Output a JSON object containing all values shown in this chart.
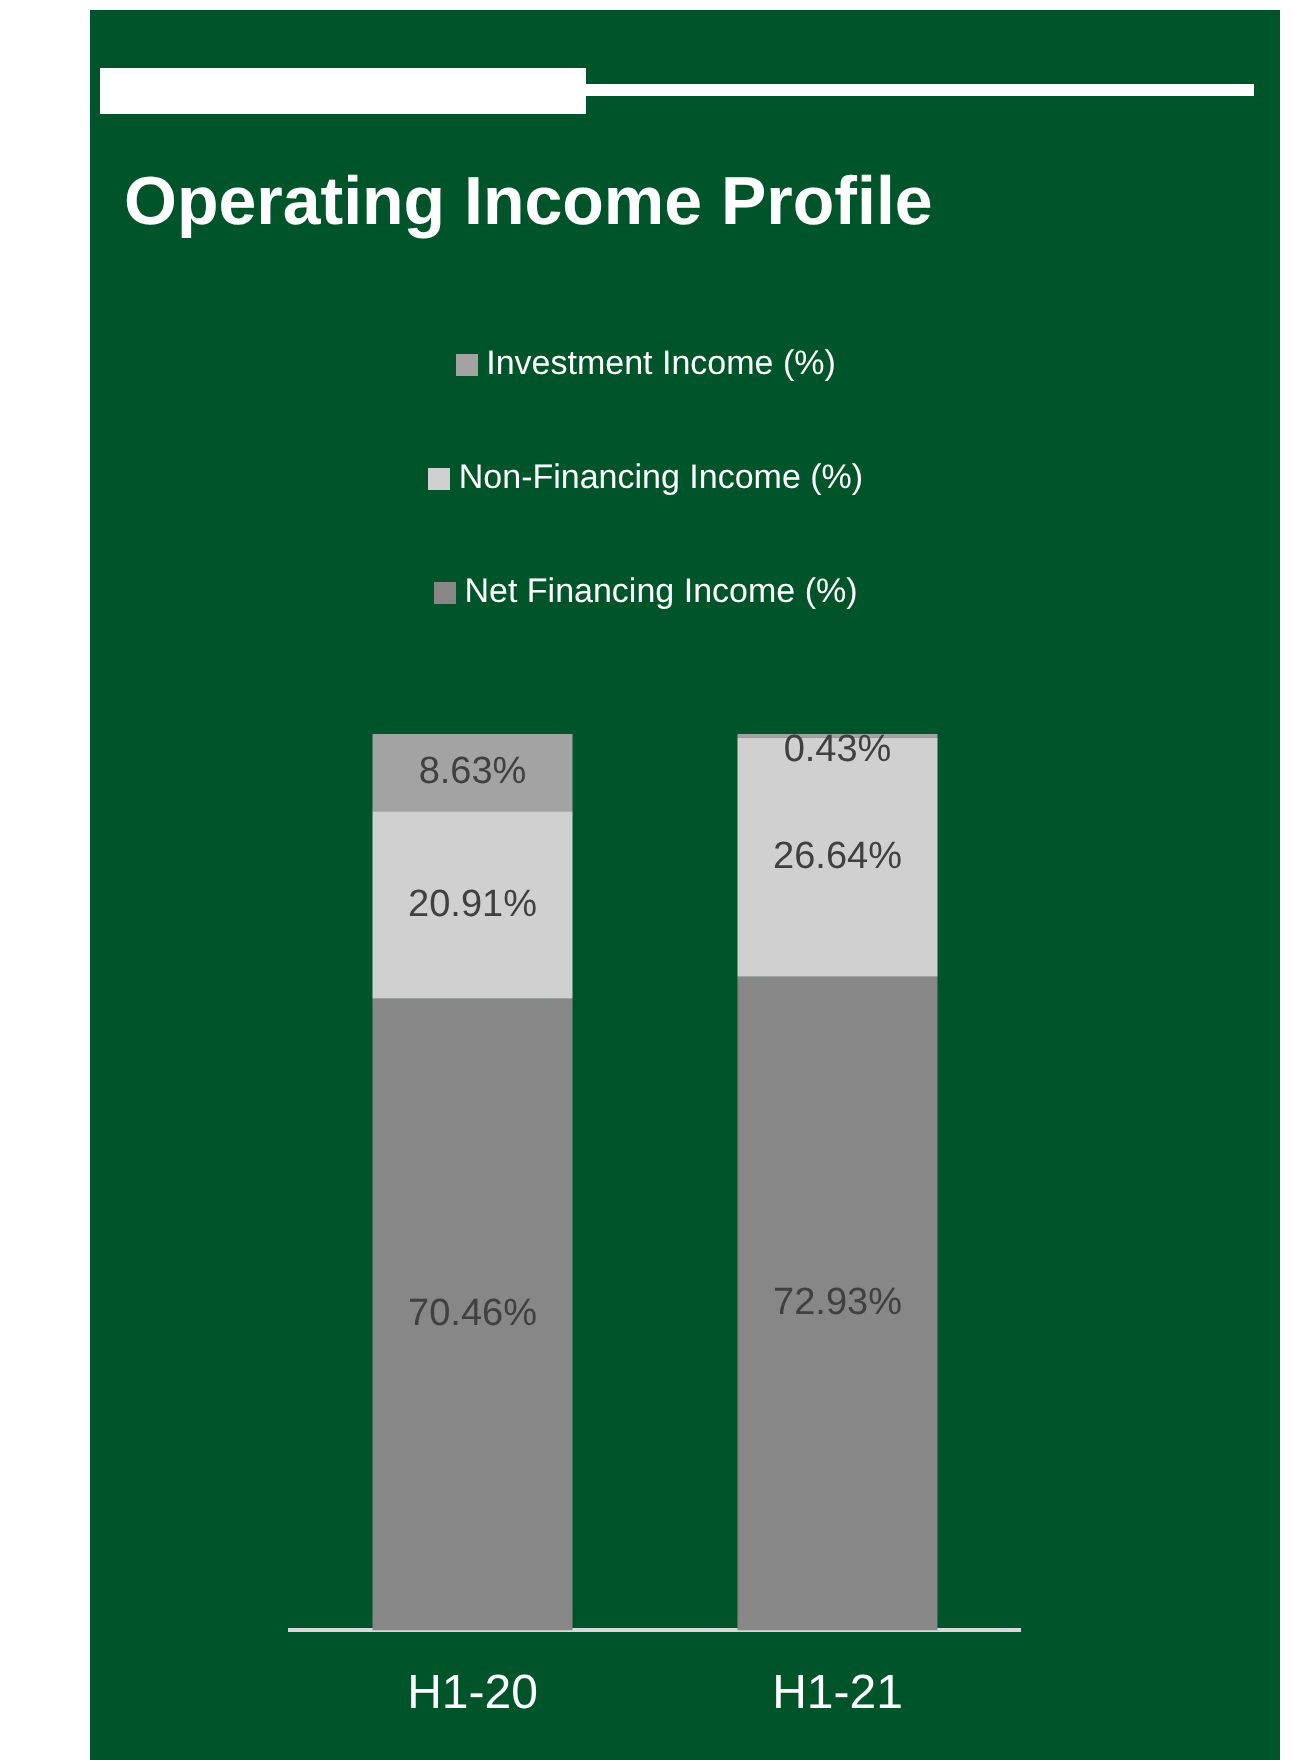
{
  "chart_data": {
    "type": "bar",
    "title": "Operating Income Profile",
    "categories": [
      "H1-20",
      "H1-21"
    ],
    "stacked": true,
    "legend": "top",
    "series": [
      {
        "name": "Net Financing Income (%)",
        "color": "#878787",
        "values": [
          70.46,
          72.93
        ],
        "value_labels": [
          "70.46%",
          "72.93%"
        ]
      },
      {
        "name": "Non-Financing Income (%)",
        "color": "#d0d0d0",
        "values": [
          20.91,
          26.64
        ],
        "value_labels": [
          "20.91%",
          "26.64%"
        ]
      },
      {
        "name": "Investment Income (%)",
        "color": "#a3a3a3",
        "values": [
          8.63,
          0.43
        ],
        "value_labels": [
          "8.63%",
          "0.43%"
        ]
      }
    ]
  }
}
